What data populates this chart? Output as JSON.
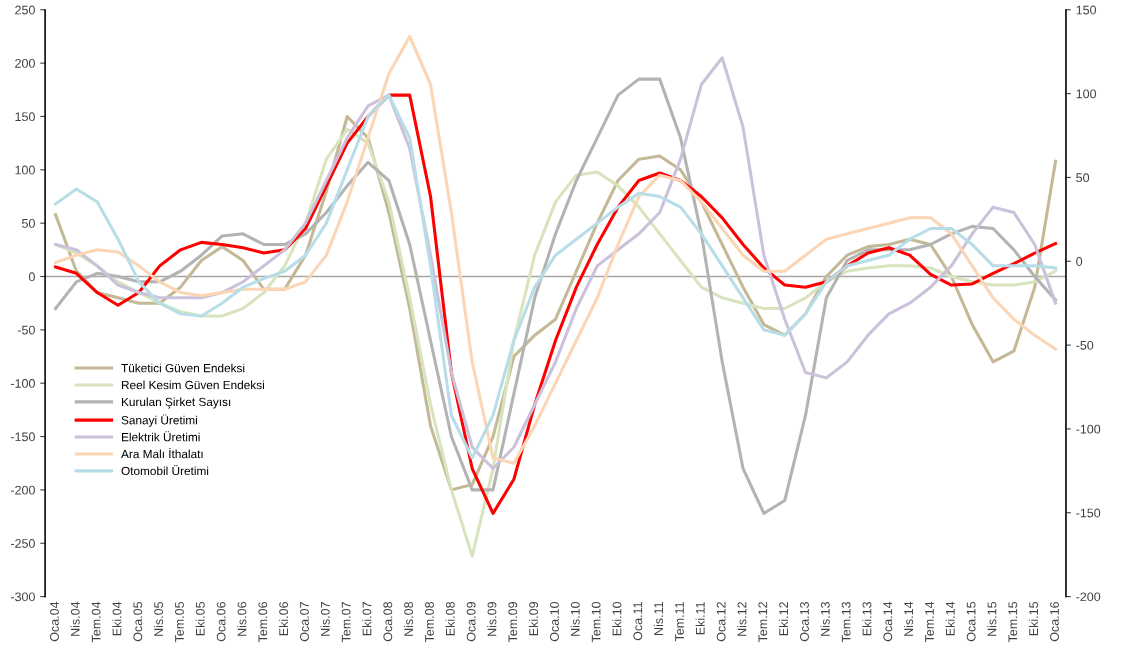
{
  "chart_data": {
    "type": "line",
    "categories": [
      "Oca.04",
      "Nis.04",
      "Tem.04",
      "Eki.04",
      "Oca.05",
      "Nis.05",
      "Tem.05",
      "Eki.05",
      "Oca.06",
      "Nis.06",
      "Tem.06",
      "Eki.06",
      "Oca.07",
      "Nis.07",
      "Tem.07",
      "Eki.07",
      "Oca.08",
      "Nis.08",
      "Tem.08",
      "Eki.08",
      "Oca.09",
      "Nis.09",
      "Tem.09",
      "Eki.09",
      "Oca.10",
      "Nis.10",
      "Tem.10",
      "Eki.10",
      "Oca.11",
      "Nis.11",
      "Tem.11",
      "Eki.11",
      "Oca.12",
      "Nis.12",
      "Tem.12",
      "Eki.12",
      "Oca.13",
      "Nis.13",
      "Tem.13",
      "Eki.13",
      "Oca.14",
      "Nis.14",
      "Tem.14",
      "Eki.14",
      "Oca.15",
      "Nis.15",
      "Tem.15",
      "Eki.15",
      "Oca.16"
    ],
    "series": [
      {
        "name": "Tüketici Güven Endeksi",
        "color": "#c4b996",
        "values": [
          58,
          5,
          -15,
          -20,
          -25,
          -25,
          -10,
          15,
          28,
          15,
          -12,
          -12,
          20,
          80,
          150,
          130,
          60,
          -30,
          -140,
          -200,
          -195,
          -150,
          -75,
          -55,
          -40,
          5,
          50,
          90,
          110,
          113,
          100,
          70,
          30,
          -10,
          -45,
          -55,
          -35,
          0,
          20,
          28,
          30,
          35,
          30,
          0,
          -45,
          -80,
          -70,
          -10,
          108
        ]
      },
      {
        "name": "Reel Kesim Güven Endeksi",
        "color": "#d7e4bd",
        "values": [
          30,
          22,
          10,
          -5,
          -15,
          -25,
          -33,
          -37,
          -37,
          -30,
          -15,
          10,
          50,
          110,
          138,
          125,
          70,
          -20,
          -120,
          -200,
          -262,
          -180,
          -60,
          20,
          70,
          95,
          98,
          85,
          65,
          40,
          15,
          -10,
          -20,
          -25,
          -30,
          -30,
          -20,
          -5,
          5,
          8,
          10,
          10,
          8,
          0,
          -5,
          -8,
          -8,
          -5,
          5
        ]
      },
      {
        "name": "Kurulan Şirket Sayısı",
        "color": "#b3b3b3",
        "values": [
          -30,
          -5,
          3,
          0,
          -5,
          -5,
          5,
          20,
          38,
          40,
          30,
          30,
          40,
          60,
          85,
          107,
          90,
          30,
          -60,
          -150,
          -200,
          -200,
          -110,
          -20,
          40,
          90,
          130,
          170,
          185,
          185,
          130,
          40,
          -80,
          -180,
          -222,
          -210,
          -130,
          -20,
          15,
          25,
          25,
          25,
          30,
          40,
          47,
          45,
          25,
          0,
          -22
        ]
      },
      {
        "name": "Sanayi Üretimi",
        "color": "#ff0000",
        "values": [
          9,
          3,
          -15,
          -27,
          -15,
          10,
          25,
          32,
          30,
          27,
          22,
          25,
          45,
          85,
          125,
          150,
          170,
          170,
          75,
          -90,
          -180,
          -222,
          -190,
          -120,
          -60,
          -10,
          30,
          65,
          90,
          97,
          90,
          75,
          55,
          30,
          8,
          -8,
          -10,
          -5,
          10,
          22,
          27,
          20,
          2,
          -8,
          -7,
          3,
          12,
          22,
          31
        ]
      },
      {
        "name": "Elektrik Üretimi",
        "color": "#ccc1da",
        "values": [
          30,
          25,
          10,
          -8,
          -15,
          -20,
          -20,
          -20,
          -15,
          -5,
          10,
          25,
          50,
          90,
          130,
          160,
          170,
          120,
          20,
          -90,
          -160,
          -180,
          -160,
          -120,
          -80,
          -30,
          10,
          25,
          40,
          60,
          110,
          180,
          205,
          140,
          20,
          -40,
          -90,
          -95,
          -80,
          -55,
          -35,
          -25,
          -10,
          10,
          40,
          65,
          60,
          30,
          -25
        ]
      },
      {
        "name": "Ara Malı İthalatı",
        "color": "#fcd5b5",
        "values": [
          13,
          20,
          25,
          23,
          10,
          -5,
          -15,
          -18,
          -15,
          -12,
          -12,
          -12,
          -5,
          20,
          70,
          130,
          190,
          225,
          180,
          60,
          -80,
          -170,
          -175,
          -140,
          -100,
          -60,
          -20,
          30,
          75,
          95,
          90,
          70,
          45,
          20,
          5,
          5,
          20,
          35,
          40,
          45,
          50,
          55,
          55,
          40,
          10,
          -20,
          -40,
          -55,
          -68
        ]
      },
      {
        "name": "Otomobil Üretimi",
        "color": "#b7dee8",
        "values": [
          68,
          82,
          70,
          35,
          -5,
          -25,
          -35,
          -37,
          -25,
          -10,
          -2,
          5,
          20,
          50,
          100,
          150,
          170,
          130,
          10,
          -130,
          -170,
          -130,
          -60,
          -10,
          20,
          35,
          50,
          65,
          78,
          75,
          65,
          40,
          10,
          -20,
          -50,
          -55,
          -35,
          -5,
          10,
          15,
          20,
          35,
          45,
          45,
          30,
          10,
          10,
          10,
          8
        ]
      }
    ],
    "ylim": [
      -300,
      250
    ],
    "yticks": [
      -300,
      -250,
      -200,
      -150,
      -100,
      -50,
      0,
      50,
      100,
      150,
      200,
      250
    ],
    "y2lim": [
      -200,
      150
    ],
    "y2ticks": [
      -200,
      -150,
      -100,
      -50,
      0,
      50,
      100,
      150
    ],
    "ref_lines": [
      {
        "axis": "y",
        "value": 0,
        "color": "#a6a6a6"
      }
    ],
    "grid": false,
    "legend": "left"
  }
}
